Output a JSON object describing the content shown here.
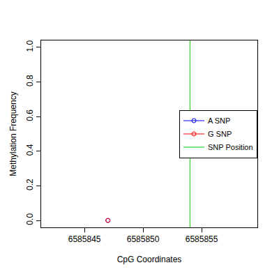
{
  "chart_data": {
    "type": "scatter",
    "x_label": "CpG Coordinates",
    "y_label": "Methylation Frequency",
    "xlim": [
      6585841.3,
      6585859.76
    ],
    "ylim": [
      -0.04,
      1.04
    ],
    "xticks": [
      6585845,
      6585850,
      6585855
    ],
    "yticks": [
      {
        "value": 0,
        "label": "0.0"
      },
      0.2,
      0.4,
      0.6,
      0.8,
      {
        "value": 1,
        "label": "1.0"
      }
    ],
    "grid": false,
    "legend": "right",
    "series": [
      {
        "name": "A SNP",
        "color": "#0000ff",
        "type": "line",
        "marker": "circle-open",
        "x": [
          6585847
        ],
        "values": [
          0
        ]
      },
      {
        "name": "G SNP",
        "color": "#ff0000",
        "type": "line",
        "marker": "circle-open",
        "x": [
          6585847
        ],
        "values": [
          0
        ]
      },
      {
        "name": "SNP Position",
        "color": "#00cc00",
        "type": "vline",
        "x": [
          6585854
        ]
      }
    ]
  }
}
